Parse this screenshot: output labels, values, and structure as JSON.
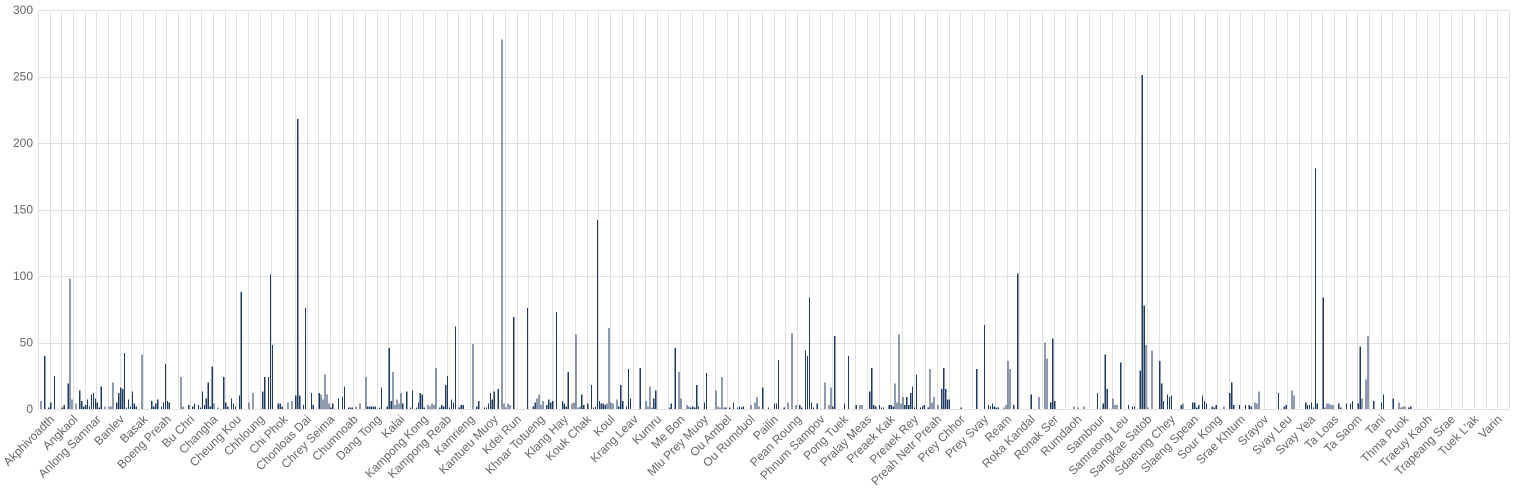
{
  "chart_data": {
    "type": "bar",
    "title": "",
    "xlabel": "",
    "ylabel": "",
    "ylim": [
      0,
      300
    ],
    "y_ticks": [
      0,
      50,
      100,
      150,
      200,
      250,
      300
    ],
    "grid": true,
    "bar_color": "#1f3a5f",
    "grid_color": "#e1e1e1",
    "label_color": "#666666",
    "categories": [
      "Akphivoadth",
      "Angkaol",
      "Anlong Samnar",
      "Banlev",
      "Basak",
      "Boeng Preah",
      "Bu Chri",
      "Changha",
      "Cheung Kou",
      "Chhloung",
      "Chi Phok",
      "Chonloas Dai",
      "Chrey Seima",
      "Chumnoab",
      "Dang Tong",
      "Kalai",
      "Kampong Kong",
      "Kampong Reab",
      "Kamrieng",
      "Kantueu Muoy",
      "Kdei Run",
      "Khnar Totueng",
      "Klang Hay",
      "Kouk Chak",
      "Koul",
      "Krang Leav",
      "Kumru",
      "Me Bon",
      "Mlu Prey Muoy",
      "Ou Ambel",
      "Ou Rumduol",
      "Pailin",
      "Pean Roung",
      "Phnum Sampov",
      "Pong Tuek",
      "Pralay Meas",
      "Preaek Kak",
      "Preaek Rey",
      "Preah Netr Preah",
      "Prey Chhor",
      "Prey Svay",
      "Ream",
      "Roka Kandal",
      "Ronak Ser",
      "Rumdaoh",
      "Sambour",
      "Samraong Leu",
      "Sangkae Satob",
      "Sdaeung Chey",
      "Slaeng Spean",
      "Sour Kong",
      "Srae Khtum",
      "Srayov",
      "Svay Leu",
      "Svay Yea",
      "Ta Loas",
      "Ta Saom",
      "Tani",
      "Thma Puok",
      "Traeuy Kaoh",
      "Trapeang Srae",
      "Tuek L'ak",
      "Varin"
    ],
    "series": [
      {
        "values": [
          [
            0,
            6,
            0,
            40,
            0,
            1,
            5,
            0,
            25,
            0,
            0,
            0
          ],
          [
            1,
            3,
            0,
            19,
            98,
            7,
            0,
            4,
            0,
            14,
            6,
            2
          ],
          [
            3,
            7,
            2,
            11,
            12,
            8,
            5,
            1,
            17,
            0,
            2,
            0
          ],
          [
            2,
            2,
            20,
            0,
            5,
            12,
            16,
            15,
            42,
            1,
            7,
            2
          ],
          [
            13,
            4,
            2,
            0,
            0,
            41,
            0,
            0,
            0,
            0,
            6,
            2
          ],
          [
            4,
            7,
            0,
            2,
            5,
            34,
            6,
            5,
            0,
            0,
            0,
            0
          ],
          [
            0,
            24,
            2,
            0,
            0,
            3,
            0,
            2,
            4,
            0,
            3,
            1
          ],
          [
            13,
            3,
            8,
            20,
            2,
            32,
            4,
            0,
            1,
            0,
            0,
            24
          ],
          [
            5,
            2,
            0,
            8,
            4,
            2,
            0,
            10,
            88,
            0,
            0,
            0
          ],
          [
            5,
            0,
            12,
            0,
            0,
            0,
            0,
            13,
            24,
            0,
            24,
            101
          ],
          [
            48,
            0,
            0,
            4,
            4,
            2,
            0,
            0,
            5,
            0,
            6,
            0
          ],
          [
            10,
            218,
            10,
            0,
            3,
            76,
            0,
            0,
            12,
            3,
            0,
            0
          ],
          [
            12,
            11,
            7,
            26,
            11,
            4,
            1,
            4,
            0,
            0,
            8,
            0
          ],
          [
            9,
            17,
            0,
            1,
            1,
            1,
            0,
            2,
            0,
            4,
            0,
            0
          ],
          [
            24,
            2,
            2,
            2,
            2,
            2,
            0,
            1,
            16,
            0,
            0,
            2
          ],
          [
            46,
            6,
            28,
            3,
            7,
            4,
            12,
            4,
            0,
            13,
            0,
            1
          ],
          [
            14,
            0,
            1,
            5,
            12,
            11,
            1,
            0,
            3,
            2,
            4,
            3
          ],
          [
            31,
            0,
            1,
            3,
            2,
            18,
            25,
            1,
            7,
            5,
            62,
            0
          ],
          [
            1,
            3,
            3,
            0,
            0,
            0,
            0,
            49,
            0,
            2,
            6,
            0
          ],
          [
            0,
            1,
            1,
            4,
            12,
            7,
            13,
            0,
            15,
            0,
            278,
            4
          ],
          [
            1,
            4,
            3,
            0,
            69,
            0,
            0,
            0,
            0,
            0,
            0,
            76
          ],
          [
            0,
            0,
            2,
            5,
            8,
            11,
            3,
            6,
            0,
            3,
            7,
            5
          ],
          [
            6,
            0,
            73,
            0,
            0,
            6,
            4,
            2,
            28,
            0,
            4,
            5
          ],
          [
            56,
            1,
            2,
            11,
            3,
            0,
            4,
            0,
            18,
            1,
            2,
            142
          ],
          [
            6,
            4,
            4,
            3,
            4,
            61,
            5,
            4,
            0,
            7,
            2,
            18
          ],
          [
            6,
            0,
            2,
            30,
            8,
            0,
            0,
            0,
            0,
            31,
            0,
            0
          ],
          [
            6,
            2,
            17,
            1,
            8,
            14,
            0,
            0,
            0,
            0,
            0,
            0
          ],
          [
            1,
            4,
            0,
            46,
            0,
            28,
            8,
            0,
            0,
            3,
            2,
            1
          ],
          [
            2,
            1,
            18,
            2,
            0,
            0,
            5,
            27,
            0,
            0,
            0,
            0
          ],
          [
            14,
            2,
            1,
            24,
            1,
            1,
            0,
            1,
            0,
            5,
            0,
            1
          ],
          [
            2,
            1,
            2,
            0,
            0,
            0,
            3,
            0,
            5,
            9,
            2,
            0
          ],
          [
            16,
            0,
            0,
            1,
            0,
            0,
            4,
            4,
            37,
            0,
            0,
            1
          ],
          [
            0,
            5,
            0,
            57,
            0,
            3,
            0,
            3,
            1,
            0,
            44,
            40
          ],
          [
            84,
            5,
            1,
            0,
            4,
            0,
            0,
            0,
            20,
            0,
            3,
            16
          ],
          [
            2,
            55,
            0,
            0,
            0,
            0,
            4,
            0,
            40,
            0,
            0,
            0
          ],
          [
            3,
            0,
            3,
            3,
            0,
            0,
            0,
            13,
            31,
            3,
            2,
            0
          ],
          [
            3,
            1,
            1,
            0,
            0,
            3,
            3,
            2,
            19,
            5,
            56,
            4
          ],
          [
            9,
            3,
            9,
            3,
            12,
            17,
            1,
            26,
            0,
            1,
            2,
            3
          ],
          [
            0,
            1,
            30,
            5,
            9,
            0,
            3,
            0,
            15,
            31,
            15,
            7
          ],
          [
            7,
            0,
            0,
            0,
            0,
            0,
            1,
            0,
            0,
            0,
            0,
            0
          ],
          [
            0,
            0,
            30,
            0,
            0,
            0,
            63,
            0,
            3,
            2,
            4,
            2
          ],
          [
            1,
            1,
            0,
            0,
            1,
            3,
            36,
            30,
            0,
            3,
            0,
            102
          ],
          [
            0,
            0,
            0,
            0,
            0,
            0,
            11,
            0,
            0,
            0,
            9,
            0
          ],
          [
            0,
            50,
            38,
            0,
            5,
            53,
            6,
            0,
            0,
            0,
            0,
            0
          ],
          [
            0,
            0,
            0,
            0,
            2,
            0,
            1,
            0,
            0,
            2,
            0,
            0
          ],
          [
            0,
            0,
            0,
            0,
            12,
            0,
            0,
            4,
            41,
            15,
            0,
            0
          ],
          [
            8,
            3,
            3,
            0,
            35,
            0,
            0,
            0,
            3,
            0,
            2,
            2
          ],
          [
            0,
            0,
            29,
            251,
            78,
            48,
            1,
            0,
            44,
            0,
            0,
            0
          ],
          [
            36,
            19,
            6,
            0,
            11,
            9,
            10,
            0,
            0,
            0,
            0,
            3
          ],
          [
            4,
            0,
            0,
            0,
            0,
            5,
            5,
            1,
            3,
            0,
            10,
            6
          ],
          [
            4,
            0,
            0,
            2,
            1,
            3,
            0,
            0,
            0,
            2,
            0,
            0
          ],
          [
            12,
            20,
            3,
            0,
            0,
            3,
            0,
            0,
            3,
            0,
            3,
            2
          ],
          [
            0,
            5,
            4,
            13,
            0,
            0,
            0,
            0,
            0,
            0,
            0,
            0
          ],
          [
            0,
            12,
            0,
            0,
            2,
            3,
            0,
            0,
            14,
            10,
            0,
            0
          ],
          [
            0,
            0,
            0,
            5,
            3,
            3,
            5,
            1,
            181,
            4,
            0,
            0
          ],
          [
            84,
            1,
            4,
            4,
            3,
            3,
            0,
            0,
            4,
            1,
            0,
            0
          ],
          [
            4,
            0,
            4,
            6,
            0,
            0,
            4,
            47,
            8,
            0,
            22,
            55
          ],
          [
            0,
            0,
            6,
            0,
            0,
            0,
            5,
            11,
            0,
            0,
            0,
            0
          ],
          [
            8,
            0,
            0,
            5,
            1,
            2,
            2,
            0,
            1,
            2,
            0,
            0
          ],
          [
            0,
            0,
            0,
            0,
            0,
            0,
            0,
            0,
            0,
            0,
            0,
            0
          ],
          [
            0,
            0,
            0,
            0,
            0,
            0,
            0,
            0,
            0,
            0,
            0,
            0
          ],
          [
            0,
            0,
            0,
            0,
            0,
            0,
            0,
            0,
            0,
            0,
            0,
            0
          ],
          [
            0,
            0,
            0,
            0,
            0,
            0,
            0,
            0,
            0,
            0,
            0,
            0
          ]
        ]
      }
    ]
  }
}
